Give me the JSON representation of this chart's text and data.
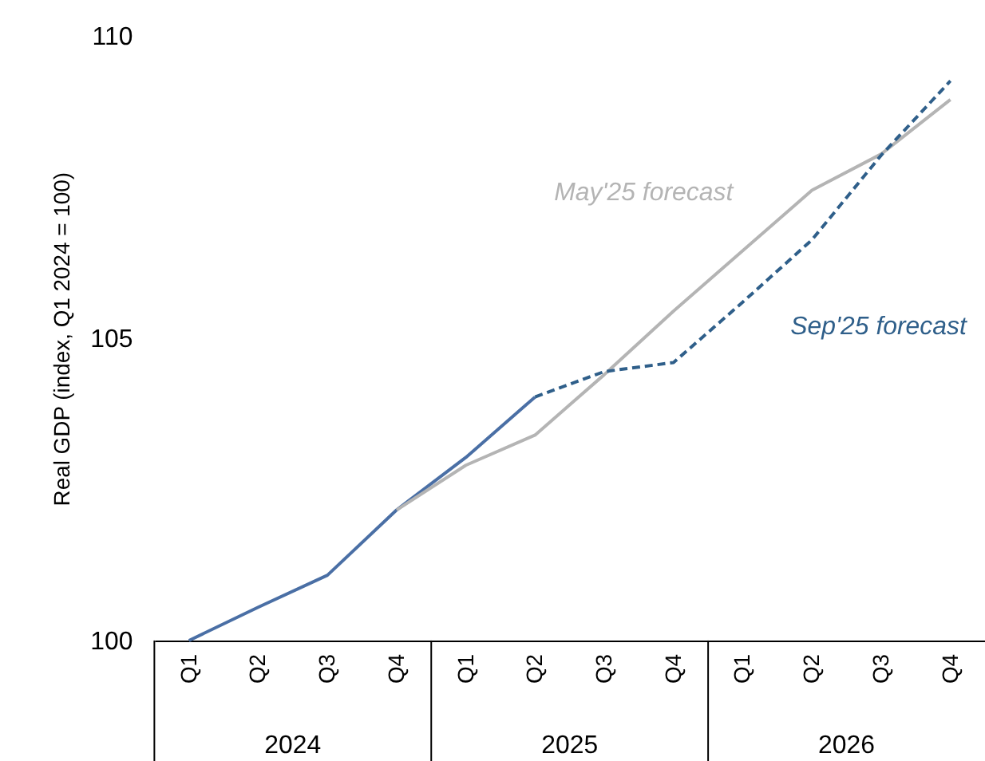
{
  "chart_data": {
    "type": "line",
    "ylabel": "Real GDP (index, Q1 2024 = 100)",
    "categories": [
      "Q1",
      "Q2",
      "Q3",
      "Q4",
      "Q1",
      "Q2",
      "Q3",
      "Q4",
      "Q1",
      "Q2",
      "Q3",
      "Q4"
    ],
    "series": [
      {
        "color": "#4a6fa5",
        "line_style": "solid",
        "values": [
          100,
          100.55,
          101.08,
          102.16,
          103.03,
          104.03,
          null,
          null,
          null,
          null,
          null,
          null
        ]
      },
      {
        "name": "May'25 forecast",
        "color": "#b4b4b4",
        "line_style": "solid",
        "values": [
          null,
          null,
          null,
          102.16,
          102.9,
          103.4,
          104.4,
          105.45,
          106.45,
          107.45,
          108.05,
          108.95
        ]
      },
      {
        "name": "Sep'25 forecast",
        "color": "#2f5f8a",
        "line_style": "dashed",
        "values": [
          null,
          null,
          null,
          null,
          null,
          104.03,
          104.45,
          104.6,
          105.6,
          106.63,
          108.03,
          109.26
        ]
      }
    ],
    "annotations": [
      "2024",
      "2025",
      "2026"
    ],
    "ylim": [
      100,
      110
    ],
    "yticks": [
      100,
      105,
      110
    ],
    "grid": false
  }
}
